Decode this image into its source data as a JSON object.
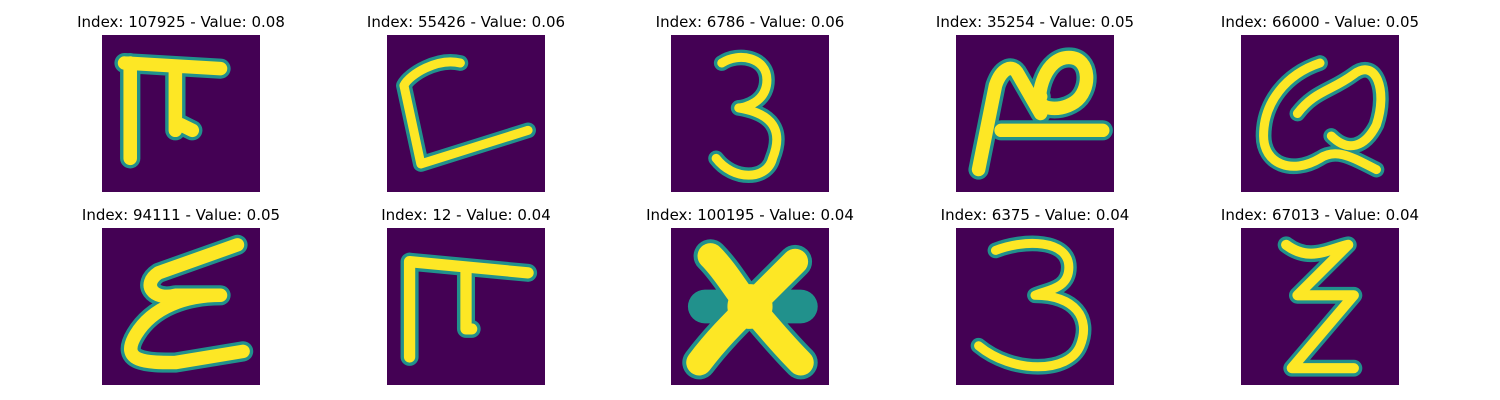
{
  "panels": [
    {
      "index": "107925",
      "value": "0.08",
      "title": "Index: 107925 - Value: 0.08",
      "glyph": "pi-like"
    },
    {
      "index": "55426",
      "value": "0.06",
      "title": "Index: 55426 - Value: 0.06",
      "glyph": "L-bracket"
    },
    {
      "index": "6786",
      "value": "0.06",
      "title": "Index: 6786 - Value: 0.06",
      "glyph": "three"
    },
    {
      "index": "35254",
      "value": "0.05",
      "title": "Index: 35254 - Value: 0.05",
      "glyph": "N-loop"
    },
    {
      "index": "66000",
      "value": "0.05",
      "title": "Index: 66000 - Value: 0.05",
      "glyph": "Q-like"
    },
    {
      "index": "94111",
      "value": "0.05",
      "title": "Index: 94111 - Value: 0.05",
      "glyph": "epsilon"
    },
    {
      "index": "12",
      "value": "0.04",
      "title": "Index: 12 - Value: 0.04",
      "glyph": "pi-like"
    },
    {
      "index": "100195",
      "value": "0.04",
      "title": "Index: 100195 - Value: 0.04",
      "glyph": "x-cross"
    },
    {
      "index": "6375",
      "value": "0.04",
      "title": "Index: 6375 - Value: 0.04",
      "glyph": "three"
    },
    {
      "index": "67013",
      "value": "0.04",
      "title": "Index: 67013 - Value: 0.04",
      "glyph": "z-like"
    }
  ],
  "colors": {
    "background": "#440154",
    "stroke": "#fde725",
    "edge": "#21918c"
  }
}
